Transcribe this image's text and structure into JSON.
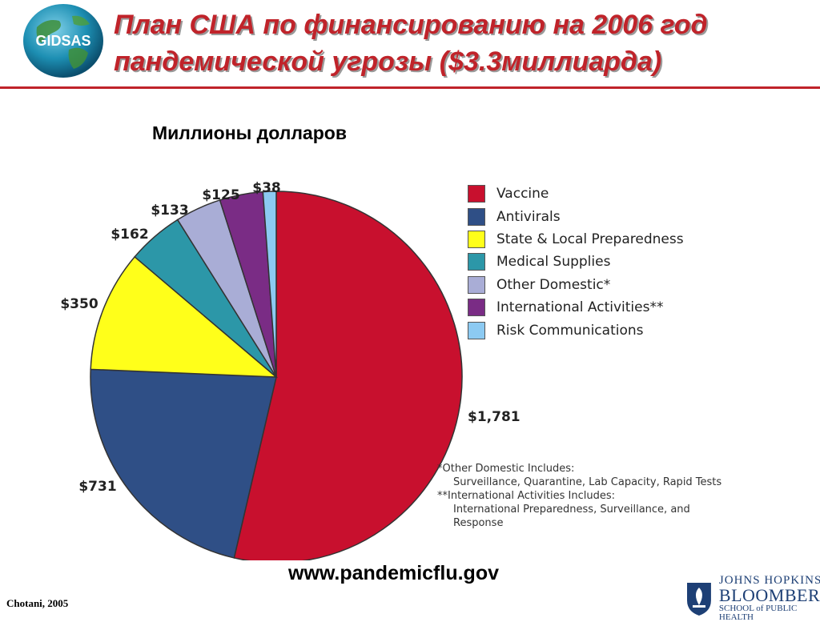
{
  "logo": {
    "text": "GIDSAS"
  },
  "header": {
    "title_line1": "План США по финансированию  на 2006 год",
    "title_line2": "пандемической угрозы ($3.3миллиарда)"
  },
  "subtitle": "Миллионы долларов",
  "chart_data": {
    "type": "pie",
    "title": "",
    "unit": "Millions of dollars",
    "legend_position": "right",
    "slices": [
      {
        "name": "Vaccine",
        "value": 1781,
        "label": "$1,781",
        "color": "#c8102e"
      },
      {
        "name": "Antivirals",
        "value": 731,
        "label": "$731",
        "color": "#2f4f86"
      },
      {
        "name": "State & Local Preparedness",
        "value": 350,
        "label": "$350",
        "color": "#ffff1a"
      },
      {
        "name": "Medical Supplies",
        "value": 162,
        "label": "$162",
        "color": "#2c97a8"
      },
      {
        "name": "Other Domestic*",
        "value": 133,
        "label": "$133",
        "color": "#a9add6"
      },
      {
        "name": "International Activities**",
        "value": 125,
        "label": "$125",
        "color": "#7a2c85"
      },
      {
        "name": "Risk Communications",
        "value": 38,
        "label": "$38",
        "color": "#8ccaf2"
      }
    ]
  },
  "notes": {
    "line1": "*Other Domestic Includes:",
    "line2": "Surveillance, Quarantine, Lab Capacity, Rapid Tests",
    "line3": "**International Activities Includes:",
    "line4": "International Preparedness, Surveillance, and",
    "line5": "Response"
  },
  "url": "www.pandemicflu.gov",
  "credit": "Chotani, 2005",
  "institution": {
    "line1": "JOHNS HOPKINS",
    "line2": "BLOOMBERG",
    "line3": "SCHOOL of PUBLIC HEALTH"
  },
  "colors": {
    "title": "#c0232a",
    "rule": "#c0232a",
    "institution": "#1d3f75"
  }
}
